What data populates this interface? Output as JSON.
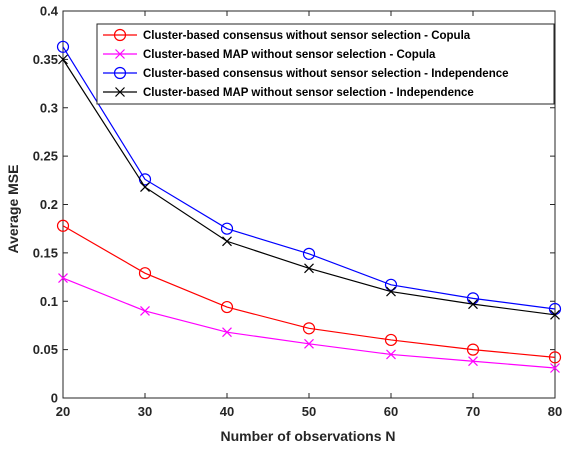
{
  "chart_data": {
    "type": "line",
    "title": "",
    "xlabel": "Number of observations N",
    "ylabel": "Average MSE",
    "x": [
      20,
      30,
      40,
      50,
      60,
      70,
      80
    ],
    "xlim": [
      20,
      80
    ],
    "ylim": [
      0,
      0.4
    ],
    "xticks": [
      "20",
      "30",
      "40",
      "50",
      "60",
      "70",
      "80"
    ],
    "yticks": [
      "0",
      "0.05",
      "0.1",
      "0.15",
      "0.2",
      "0.25",
      "0.3",
      "0.35",
      "0.4"
    ],
    "grid": false,
    "legend_position": "top-right",
    "series": [
      {
        "name": "Cluster-based consensus without sensor selection - Copula",
        "color": "#ff0000",
        "marker": "circle",
        "values": [
          0.178,
          0.129,
          0.094,
          0.072,
          0.06,
          0.05,
          0.042
        ]
      },
      {
        "name": "Cluster-based MAP without sensor selection - Copula",
        "color": "#ff00ff",
        "marker": "x",
        "values": [
          0.124,
          0.09,
          0.068,
          0.056,
          0.045,
          0.038,
          0.031
        ]
      },
      {
        "name": "Cluster-based consensus without sensor selection - Independence",
        "color": "#0000ff",
        "marker": "circle",
        "values": [
          0.363,
          0.226,
          0.175,
          0.149,
          0.117,
          0.103,
          0.092
        ]
      },
      {
        "name": "Cluster-based MAP without sensor selection - Independence",
        "color": "#000000",
        "marker": "x",
        "values": [
          0.35,
          0.218,
          0.162,
          0.134,
          0.11,
          0.097,
          0.086
        ]
      }
    ]
  }
}
